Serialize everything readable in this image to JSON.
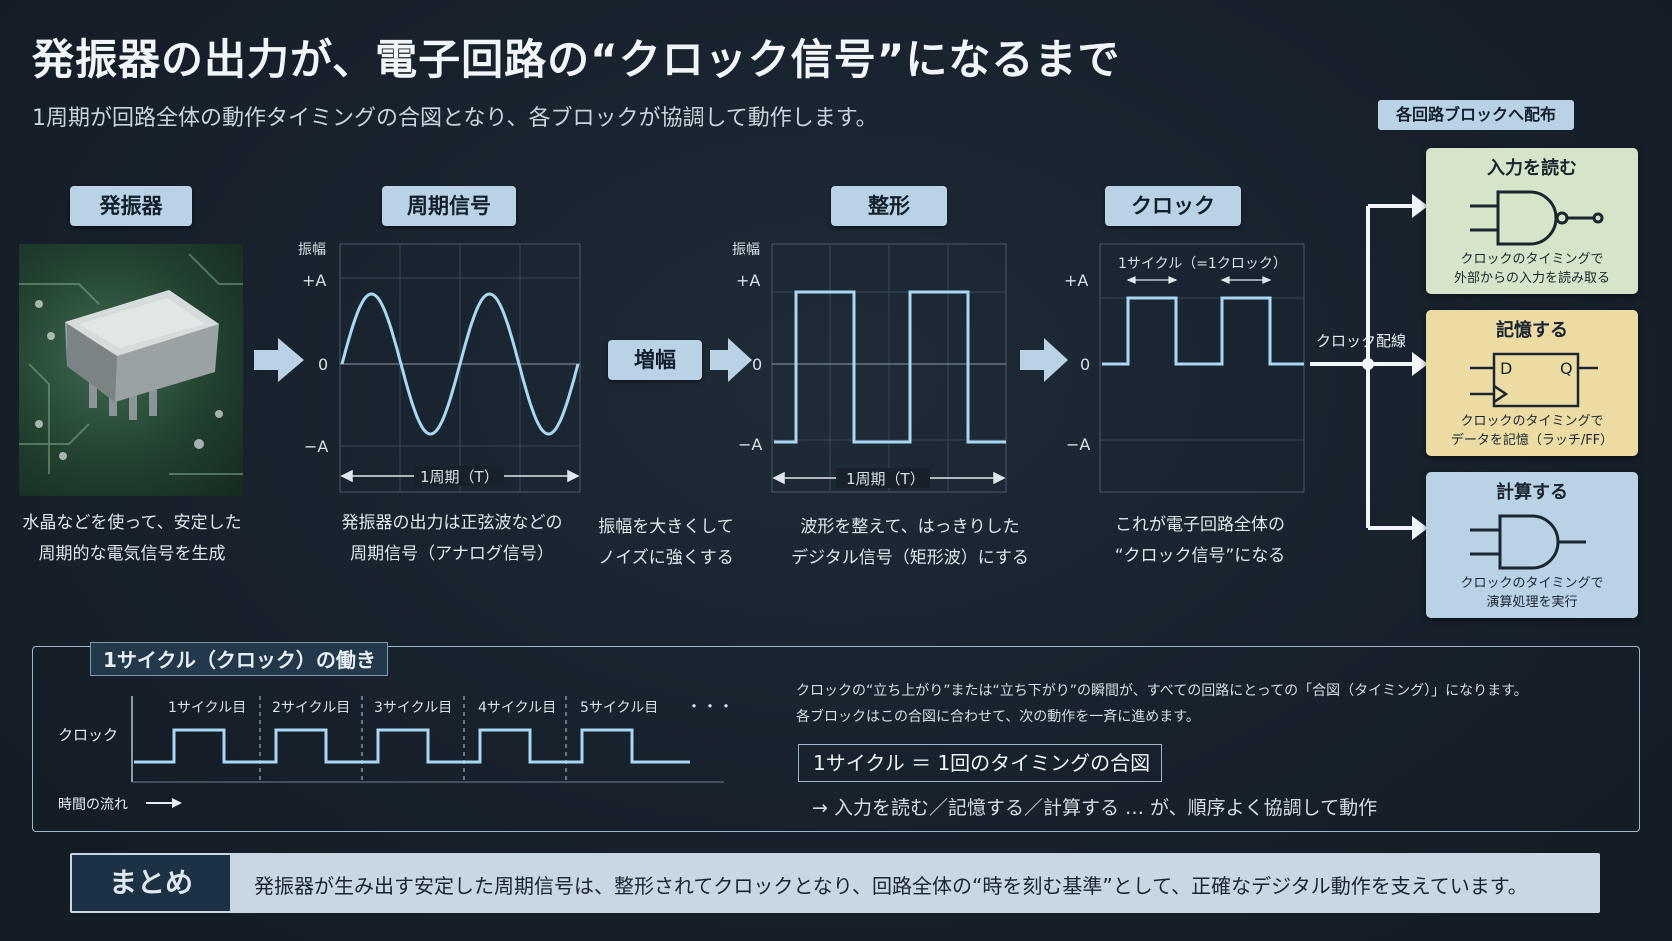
{
  "title": "発振器の出力が、電子回路の“クロック信号”になるまで",
  "subtitle": "1周期が回路全体の動作タイミングの合図となり、各ブロックが協調して動作します。",
  "stages": {
    "oscillator": {
      "label": "発振器",
      "caption1": "水晶などを使って、安定した",
      "caption2": "周期的な電気信号を生成"
    },
    "periodic": {
      "label": "周期信号",
      "caption1": "発振器の出力は正弦波などの",
      "caption2": "周期信号（アナログ信号）",
      "ylabel": "振幅",
      "ticks": [
        "+A",
        "0",
        "−A"
      ],
      "period": "1周期（T）"
    },
    "amplify": {
      "label": "増幅",
      "caption1": "振幅を大きくして",
      "caption2": "ノイズに強くする"
    },
    "shaping": {
      "label": "整形",
      "caption1": "波形を整えて、はっきりした",
      "caption2": "デジタル信号（矩形波）にする",
      "ylabel": "振幅",
      "ticks": [
        "+A",
        "0",
        "−A"
      ],
      "period": "1周期（T）"
    },
    "clock": {
      "label": "クロック",
      "caption1": "これが電子回路全体の",
      "caption2": "“クロック信号”になる",
      "ticks": [
        "+A",
        "0",
        "−A"
      ],
      "cycle": "1サイクル（=1クロック）"
    }
  },
  "wiring_label": "クロック配線",
  "distribution_tag": "各回路ブロックへ配布",
  "blocks": [
    {
      "title": "入力を読む",
      "desc1": "クロックのタイミングで",
      "desc2": "外部からの入力を読み取る",
      "color": "#d6e4c9"
    },
    {
      "title": "記憶する",
      "desc1": "クロックのタイミングで",
      "desc2": "データを記憶（ラッチ/FF）",
      "color": "#ecdca4",
      "d": "D",
      "q": "Q"
    },
    {
      "title": "計算する",
      "desc1": "クロックのタイミングで",
      "desc2": "演算処理を実行",
      "color": "#b9d2e6"
    }
  ],
  "panel": {
    "tag": "1サイクル（クロック）の働き",
    "row_label": "クロック",
    "cycles": [
      "1サイクル目",
      "2サイクル目",
      "3サイクル目",
      "4サイクル目",
      "5サイクル目"
    ],
    "ellipsis": "・・・",
    "time_label": "時間の流れ",
    "text1": "クロックの“立ち上がり”または“立ち下がり”の瞬間が、すべての回路にとっての「合図（タイミング）」になります。",
    "text2": "各ブロックはこの合図に合わせて、次の動作を一斉に進めます。",
    "cycle_box": "1サイクル ＝ 1回のタイミングの合図",
    "result": "→ 入力を読む／記憶する／計算する … が、順序よく協調して動作"
  },
  "summary": {
    "tag": "まとめ",
    "text": "発振器が生み出す安定した周期信号は、整形されてクロックとなり、回路全体の“時を刻む基準”として、正確なデジタル動作を支えています。"
  },
  "colors": {
    "signal": "#a9d8f5",
    "arrow": "#b9d2e6",
    "background": "#17202b"
  }
}
